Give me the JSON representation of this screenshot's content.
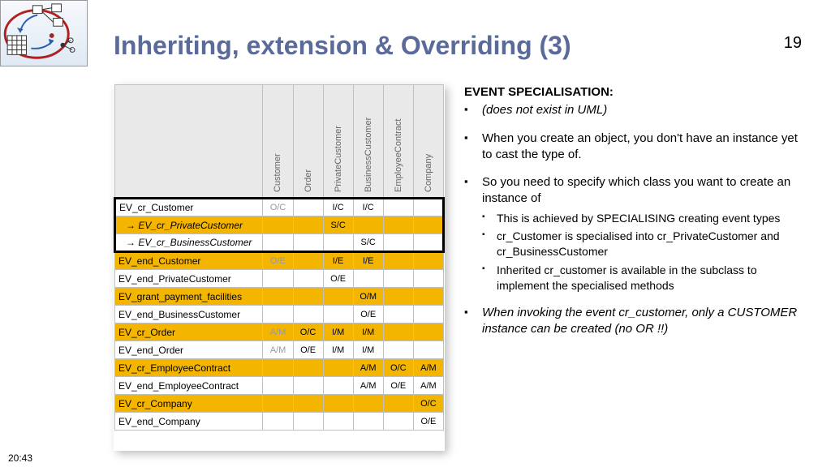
{
  "title": "Inheriting, extension & Overriding (3)",
  "page_number": "19",
  "timestamp": "20:43",
  "matrix": {
    "columns": [
      "Customer",
      "Order",
      "PrivateCustomer",
      "BusinessCustomer",
      "EmployeeContract",
      "Company"
    ],
    "rows": [
      {
        "label": "EV_cr_Customer",
        "alt": false,
        "cells": [
          "O/C",
          "",
          "I/C",
          "I/C",
          "",
          ""
        ],
        "grey": [
          0
        ],
        "box": true
      },
      {
        "label": "→ EV_cr_PrivateCustomer",
        "alt": true,
        "indent": true,
        "cells": [
          "",
          "",
          "S/C",
          "",
          "",
          ""
        ],
        "box": true
      },
      {
        "label": "→ EV_cr_BusinessCustomer",
        "alt": false,
        "indent": true,
        "cells": [
          "",
          "",
          "",
          "S/C",
          "",
          ""
        ],
        "box": true
      },
      {
        "label": "EV_end_Customer",
        "alt": true,
        "cells": [
          "O/E",
          "",
          "I/E",
          "I/E",
          "",
          ""
        ],
        "grey": [
          0
        ]
      },
      {
        "label": "EV_end_PrivateCustomer",
        "alt": false,
        "cells": [
          "",
          "",
          "O/E",
          "",
          "",
          ""
        ]
      },
      {
        "label": "EV_grant_payment_facilities",
        "alt": true,
        "cells": [
          "",
          "",
          "",
          "O/M",
          "",
          ""
        ]
      },
      {
        "label": "EV_end_BusinessCustomer",
        "alt": false,
        "cells": [
          "",
          "",
          "",
          "O/E",
          "",
          ""
        ]
      },
      {
        "label": "EV_cr_Order",
        "alt": true,
        "cells": [
          "A/M",
          "O/C",
          "I/M",
          "I/M",
          "",
          ""
        ],
        "grey": [
          0
        ]
      },
      {
        "label": "EV_end_Order",
        "alt": false,
        "cells": [
          "A/M",
          "O/E",
          "I/M",
          "I/M",
          "",
          ""
        ],
        "grey": [
          0
        ]
      },
      {
        "label": "EV_cr_EmployeeContract",
        "alt": true,
        "cells": [
          "",
          "",
          "",
          "A/M",
          "O/C",
          "A/M"
        ]
      },
      {
        "label": "EV_end_EmployeeContract",
        "alt": false,
        "cells": [
          "",
          "",
          "",
          "A/M",
          "O/E",
          "A/M"
        ]
      },
      {
        "label": "EV_cr_Company",
        "alt": true,
        "cells": [
          "",
          "",
          "",
          "",
          "",
          "O/C"
        ]
      },
      {
        "label": "EV_end_Company",
        "alt": false,
        "cells": [
          "",
          "",
          "",
          "",
          "",
          "O/E"
        ]
      }
    ]
  },
  "notes": {
    "heading": "EVENT SPECIALISATION",
    "items": [
      {
        "text": "(does not exist in UML)",
        "italic": true
      },
      {
        "text": "When you create an object, you don't have an instance yet to cast the type of."
      },
      {
        "text": "So you need to specify which class you want to create an instance of",
        "sub": [
          "This is achieved by SPECIALISING creating event types",
          "cr_Customer is specialised into cr_PrivateCustomer and cr_BusinessCustomer",
          "Inherited cr_customer is available in the subclass to implement the specialised methods"
        ]
      },
      {
        "text": "When invoking the event cr_customer, only a CUSTOMER instance can be created (no OR !!)",
        "italic": true
      }
    ]
  }
}
